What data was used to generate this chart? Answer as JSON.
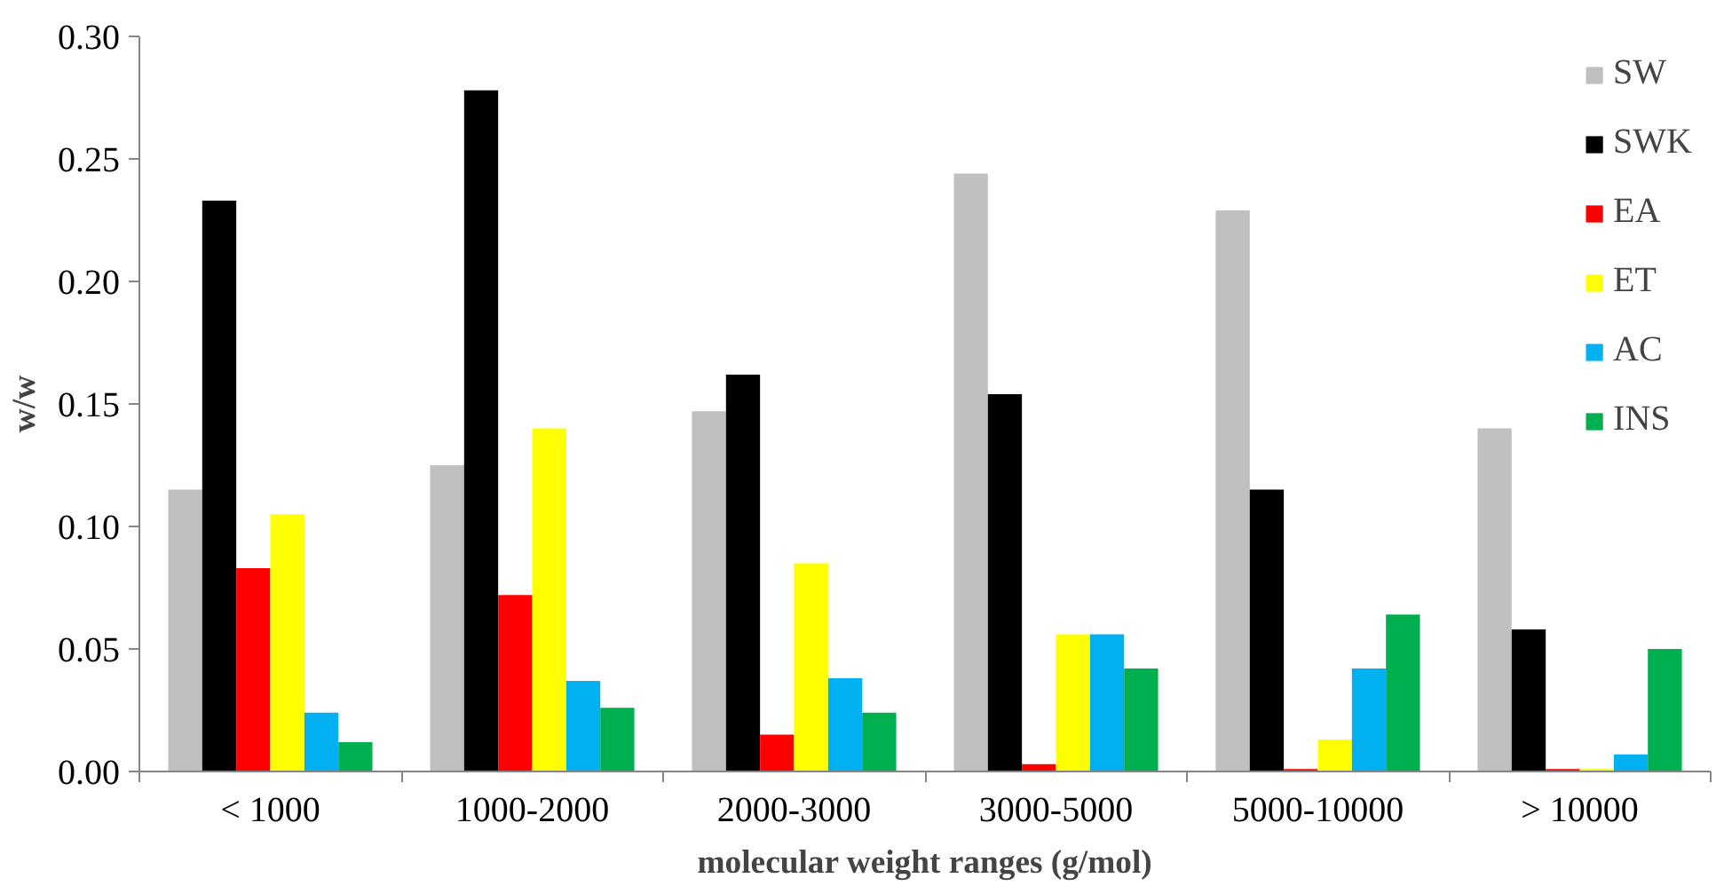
{
  "chart_data": {
    "type": "bar",
    "xlabel": "molecular weight ranges (g/mol)",
    "ylabel": "w/w",
    "categories": [
      "< 1000",
      "1000-2000",
      "2000-3000",
      "3000-5000",
      "5000-10000",
      "> 10000"
    ],
    "series": [
      {
        "name": "SW",
        "color": "#c0c0c0",
        "values": [
          0.115,
          0.125,
          0.147,
          0.244,
          0.229,
          0.14
        ]
      },
      {
        "name": "SWK",
        "color": "#000000",
        "values": [
          0.233,
          0.278,
          0.162,
          0.154,
          0.115,
          0.058
        ]
      },
      {
        "name": "EA",
        "color": "#ff0000",
        "values": [
          0.083,
          0.072,
          0.015,
          0.003,
          0.001,
          0.001
        ]
      },
      {
        "name": "ET",
        "color": "#ffff00",
        "values": [
          0.105,
          0.14,
          0.085,
          0.056,
          0.013,
          0.001
        ]
      },
      {
        "name": "AC",
        "color": "#00b0f0",
        "values": [
          0.024,
          0.037,
          0.038,
          0.056,
          0.042,
          0.007
        ]
      },
      {
        "name": "INS",
        "color": "#00b050",
        "values": [
          0.012,
          0.026,
          0.024,
          0.042,
          0.064,
          0.05
        ]
      }
    ],
    "ylim": [
      0,
      0.3
    ],
    "yticks": [
      {
        "value": 0,
        "label": "0.00"
      },
      {
        "value": 0.05,
        "label": "0.05"
      },
      {
        "value": 0.1,
        "label": "0.10"
      },
      {
        "value": 0.15,
        "label": "0.15"
      },
      {
        "value": 0.2,
        "label": "0.20"
      },
      {
        "value": 0.25,
        "label": "0.25"
      },
      {
        "value": 0.3,
        "label": "0.30"
      }
    ],
    "grid": false,
    "legend": "top right"
  }
}
